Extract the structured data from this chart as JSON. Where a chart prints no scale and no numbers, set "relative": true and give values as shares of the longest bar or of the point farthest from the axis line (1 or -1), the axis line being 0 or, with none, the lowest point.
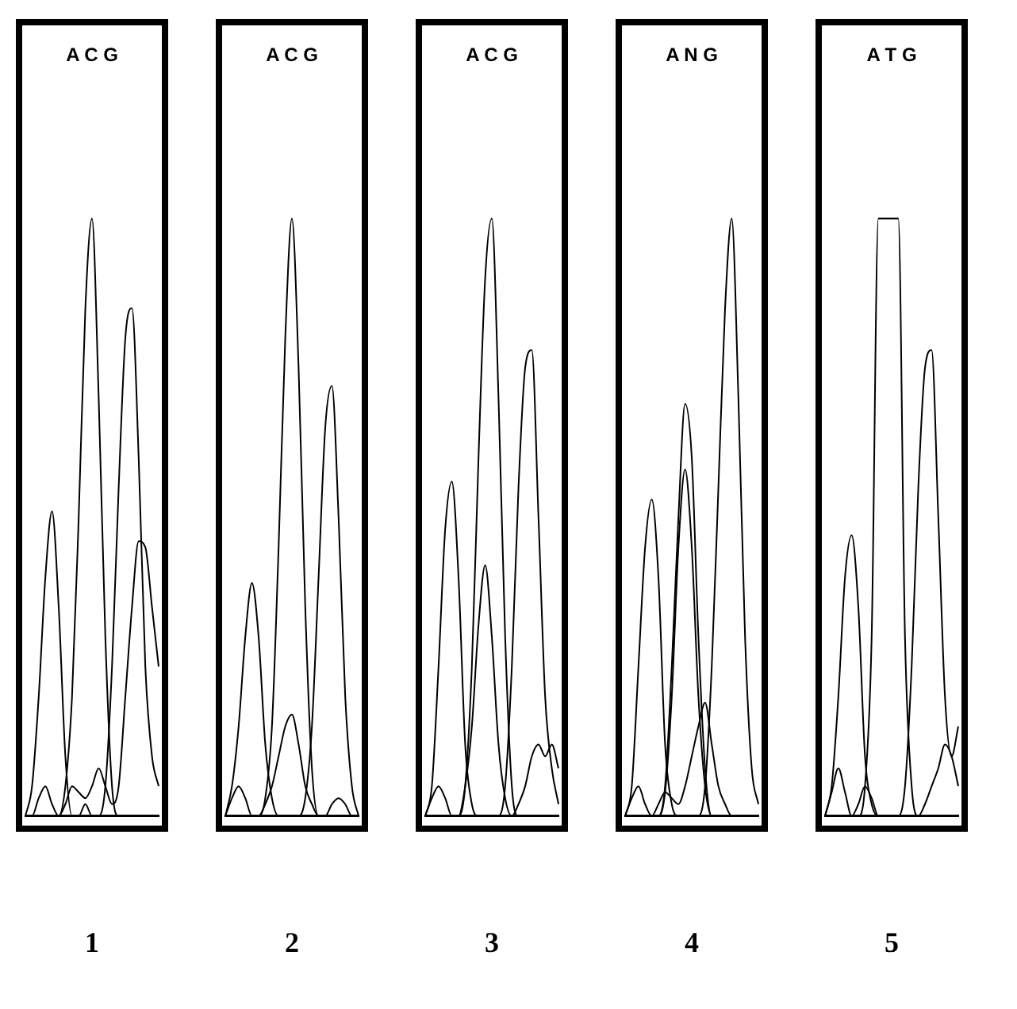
{
  "chart_data": [
    {
      "type": "line",
      "relative": true,
      "title": "A C G",
      "xlabel": "1",
      "marker": "none",
      "categories": [
        null,
        null,
        null,
        null,
        null,
        null,
        null,
        null,
        null,
        null,
        null,
        null,
        null,
        null,
        null,
        null,
        null,
        null,
        null,
        null,
        null
      ],
      "series": [
        {
          "color": "#000000",
          "values": [
            0,
            0.05,
            0.2,
            0.4,
            0.51,
            0.35,
            0.1,
            0,
            0,
            0.02,
            0,
            0,
            0,
            0,
            0,
            0,
            0,
            0,
            0,
            0,
            0
          ]
        },
        {
          "color": "#000000",
          "values": [
            0,
            0,
            0,
            0,
            0,
            0,
            0.05,
            0.2,
            0.5,
            0.85,
            1,
            0.7,
            0.3,
            0.05,
            0,
            0,
            0,
            0,
            0,
            0,
            0
          ]
        },
        {
          "color": "#000000",
          "values": [
            0,
            0,
            0,
            0,
            0,
            0,
            0,
            0,
            0,
            0,
            0,
            0,
            0.05,
            0.25,
            0.55,
            0.8,
            0.85,
            0.6,
            0.25,
            0.1,
            0.05
          ]
        },
        {
          "color": "#000000",
          "values": [
            0,
            0,
            0.03,
            0.05,
            0.02,
            0,
            0.02,
            0.05,
            0.04,
            0.03,
            0.05,
            0.08,
            0.05,
            0.02,
            0.05,
            0.2,
            0.35,
            0.46,
            0.45,
            0.35,
            0.25
          ]
        }
      ]
    },
    {
      "type": "line",
      "relative": true,
      "title": "A C G",
      "xlabel": "2",
      "marker": "none",
      "categories": [
        null,
        null,
        null,
        null,
        null,
        null,
        null,
        null,
        null,
        null,
        null,
        null,
        null,
        null,
        null,
        null,
        null,
        null,
        null,
        null,
        null
      ],
      "series": [
        {
          "color": "#000000",
          "values": [
            0,
            0.05,
            0.15,
            0.3,
            0.39,
            0.3,
            0.12,
            0.03,
            0,
            0,
            0,
            0,
            0,
            0,
            0,
            0,
            0,
            0,
            0,
            0,
            0
          ]
        },
        {
          "color": "#000000",
          "values": [
            0,
            0,
            0,
            0,
            0,
            0,
            0.03,
            0.15,
            0.45,
            0.8,
            1,
            0.75,
            0.35,
            0.08,
            0,
            0,
            0,
            0,
            0,
            0,
            0
          ]
        },
        {
          "color": "#000000",
          "values": [
            0,
            0,
            0,
            0,
            0,
            0,
            0,
            0,
            0,
            0,
            0,
            0,
            0.03,
            0.15,
            0.4,
            0.65,
            0.72,
            0.5,
            0.2,
            0.05,
            0
          ]
        },
        {
          "color": "#000000",
          "values": [
            0,
            0.03,
            0.05,
            0.03,
            0,
            0,
            0.02,
            0.05,
            0.1,
            0.15,
            0.17,
            0.12,
            0.05,
            0.02,
            0,
            0,
            0.02,
            0.03,
            0.02,
            0,
            0
          ]
        }
      ]
    },
    {
      "type": "line",
      "relative": true,
      "title": "A C G",
      "xlabel": "3",
      "marker": "none",
      "categories": [
        null,
        null,
        null,
        null,
        null,
        null,
        null,
        null,
        null,
        null,
        null,
        null,
        null,
        null,
        null,
        null,
        null,
        null,
        null,
        null,
        null
      ],
      "series": [
        {
          "color": "#000000",
          "values": [
            0,
            0.05,
            0.25,
            0.48,
            0.56,
            0.4,
            0.12,
            0.02,
            0,
            0,
            0,
            0,
            0,
            0,
            0,
            0,
            0,
            0,
            0,
            0,
            0
          ]
        },
        {
          "color": "#000000",
          "values": [
            0,
            0,
            0,
            0,
            0,
            0,
            0.05,
            0.25,
            0.6,
            0.9,
            1,
            0.7,
            0.3,
            0.05,
            0,
            0,
            0,
            0,
            0,
            0,
            0
          ]
        },
        {
          "color": "#000000",
          "values": [
            0,
            0,
            0,
            0,
            0,
            0,
            0.05,
            0.15,
            0.32,
            0.42,
            0.3,
            0.12,
            0.03,
            0,
            0,
            0,
            0,
            0,
            0,
            0,
            0
          ]
        },
        {
          "color": "#000000",
          "values": [
            0,
            0,
            0,
            0,
            0,
            0,
            0,
            0,
            0,
            0,
            0,
            0,
            0.05,
            0.25,
            0.55,
            0.75,
            0.78,
            0.5,
            0.2,
            0.08,
            0.02
          ]
        },
        {
          "color": "#000000",
          "values": [
            0,
            0.03,
            0.05,
            0.03,
            0,
            0,
            0,
            0,
            0,
            0,
            0,
            0,
            0,
            0,
            0.02,
            0.05,
            0.1,
            0.12,
            0.1,
            0.12,
            0.08
          ]
        }
      ]
    },
    {
      "type": "line",
      "relative": true,
      "title": "A N G",
      "xlabel": "4",
      "marker": "none",
      "categories": [
        null,
        null,
        null,
        null,
        null,
        null,
        null,
        null,
        null,
        null,
        null,
        null,
        null,
        null,
        null,
        null,
        null,
        null,
        null,
        null,
        null
      ],
      "series": [
        {
          "color": "#000000",
          "values": [
            0,
            0.05,
            0.25,
            0.45,
            0.53,
            0.4,
            0.12,
            0.02,
            0,
            0,
            0,
            0,
            0,
            0,
            0,
            0,
            0,
            0,
            0,
            0,
            0
          ]
        },
        {
          "color": "#000000",
          "values": [
            0,
            0,
            0,
            0,
            0,
            0,
            0.05,
            0.25,
            0.5,
            0.69,
            0.6,
            0.3,
            0.08,
            0,
            0,
            0,
            0,
            0,
            0,
            0,
            0
          ]
        },
        {
          "color": "#000000",
          "values": [
            0,
            0,
            0,
            0,
            0,
            0,
            0.04,
            0.2,
            0.45,
            0.58,
            0.45,
            0.2,
            0.05,
            0,
            0,
            0,
            0,
            0,
            0,
            0,
            0
          ]
        },
        {
          "color": "#000000",
          "values": [
            0,
            0,
            0,
            0,
            0,
            0,
            0,
            0,
            0,
            0,
            0,
            0,
            0.05,
            0.25,
            0.55,
            0.85,
            1,
            0.7,
            0.3,
            0.08,
            0.02
          ]
        },
        {
          "color": "#000000",
          "values": [
            0,
            0.03,
            0.05,
            0.02,
            0,
            0.02,
            0.04,
            0.03,
            0.02,
            0.05,
            0.1,
            0.15,
            0.19,
            0.12,
            0.05,
            0.02,
            0,
            0,
            0,
            0,
            0
          ]
        }
      ]
    },
    {
      "type": "line",
      "relative": true,
      "title": "A T G",
      "xlabel": "5",
      "marker": "none",
      "categories": [
        null,
        null,
        null,
        null,
        null,
        null,
        null,
        null,
        null,
        null,
        null,
        null,
        null,
        null,
        null,
        null,
        null,
        null,
        null,
        null,
        null
      ],
      "series": [
        {
          "color": "#000000",
          "values": [
            0,
            0.05,
            0.2,
            0.4,
            0.47,
            0.35,
            0.1,
            0.02,
            0,
            0,
            0,
            0,
            0,
            0,
            0,
            0,
            0,
            0,
            0,
            0,
            0
          ]
        },
        {
          "color": "#000000",
          "values": [
            0,
            0,
            0,
            0,
            0,
            0,
            0.05,
            0.3,
            1,
            1,
            1,
            1,
            0.3,
            0.05,
            0,
            0,
            0,
            0,
            0,
            0,
            0
          ]
        },
        {
          "color": "#000000",
          "values": [
            0,
            0,
            0,
            0,
            0,
            0,
            0,
            0,
            0,
            0,
            0,
            0,
            0.05,
            0.25,
            0.55,
            0.75,
            0.78,
            0.5,
            0.2,
            0.1,
            0.15
          ]
        },
        {
          "color": "#000000",
          "values": [
            0,
            0.04,
            0.08,
            0.04,
            0,
            0.02,
            0.05,
            0.03,
            0,
            0,
            0,
            0,
            0,
            0,
            0,
            0.02,
            0.05,
            0.08,
            0.12,
            0.1,
            0.05
          ]
        }
      ]
    }
  ]
}
